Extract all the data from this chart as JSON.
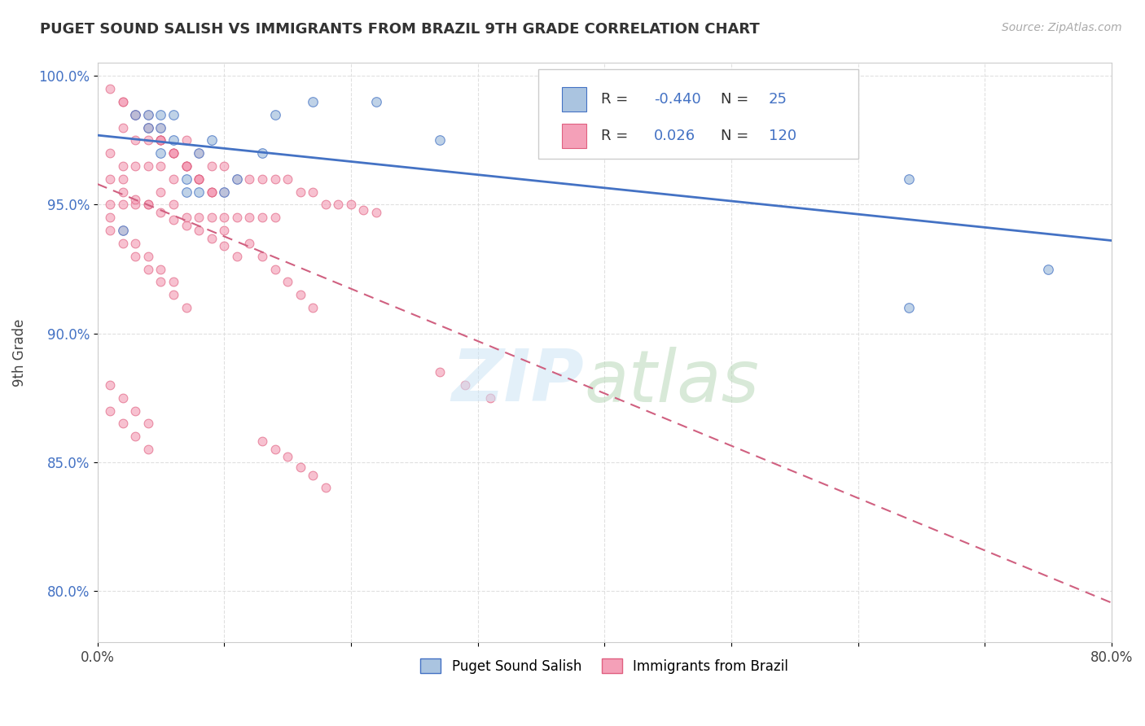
{
  "title": "PUGET SOUND SALISH VS IMMIGRANTS FROM BRAZIL 9TH GRADE CORRELATION CHART",
  "source": "Source: ZipAtlas.com",
  "ylabel": "9th Grade",
  "x_min": 0.0,
  "x_max": 0.8,
  "y_min": 0.78,
  "y_max": 1.005,
  "background_color": "#ffffff",
  "grid_color": "#dddddd",
  "blue_line_color": "#4472c4",
  "pink_line_color": "#d06080",
  "blue_dot_color": "#aac4e0",
  "pink_dot_color": "#f4a0b8",
  "blue_dot_edge": "#4472c4",
  "pink_dot_edge": "#e06080",
  "legend_blue_label": "Puget Sound Salish",
  "legend_pink_label": "Immigrants from Brazil",
  "R_blue": -0.44,
  "N_blue": 25,
  "R_pink": 0.026,
  "N_pink": 120,
  "blue_scatter_x": [
    0.02,
    0.03,
    0.04,
    0.04,
    0.05,
    0.05,
    0.05,
    0.06,
    0.06,
    0.07,
    0.07,
    0.08,
    0.08,
    0.09,
    0.1,
    0.11,
    0.13,
    0.14,
    0.17,
    0.22,
    0.27,
    0.52,
    0.64,
    0.64,
    0.75
  ],
  "blue_scatter_y": [
    0.94,
    0.985,
    0.985,
    0.98,
    0.985,
    0.98,
    0.97,
    0.985,
    0.975,
    0.955,
    0.96,
    0.97,
    0.955,
    0.975,
    0.955,
    0.96,
    0.97,
    0.985,
    0.99,
    0.99,
    0.975,
    0.975,
    0.96,
    0.91,
    0.925
  ],
  "pink_scatter_x": [
    0.01,
    0.01,
    0.01,
    0.02,
    0.02,
    0.02,
    0.02,
    0.03,
    0.03,
    0.03,
    0.03,
    0.04,
    0.04,
    0.04,
    0.04,
    0.05,
    0.05,
    0.05,
    0.05,
    0.06,
    0.06,
    0.06,
    0.07,
    0.07,
    0.07,
    0.08,
    0.08,
    0.08,
    0.09,
    0.09,
    0.09,
    0.1,
    0.1,
    0.1,
    0.11,
    0.11,
    0.12,
    0.12,
    0.13,
    0.13,
    0.14,
    0.14,
    0.15,
    0.16,
    0.17,
    0.18,
    0.19,
    0.2,
    0.21,
    0.22,
    0.02,
    0.03,
    0.04,
    0.05,
    0.06,
    0.07,
    0.08,
    0.09,
    0.1,
    0.11,
    0.02,
    0.03,
    0.04,
    0.05,
    0.06,
    0.07,
    0.08,
    0.09,
    0.03,
    0.04,
    0.05,
    0.06,
    0.07,
    0.08,
    0.01,
    0.02,
    0.03,
    0.04,
    0.05,
    0.06,
    0.07,
    0.08,
    0.09,
    0.01,
    0.02,
    0.03,
    0.04,
    0.05,
    0.06,
    0.07,
    0.01,
    0.02,
    0.03,
    0.04,
    0.05,
    0.06,
    0.01,
    0.02,
    0.03,
    0.04,
    0.01,
    0.02,
    0.03,
    0.04,
    0.27,
    0.29,
    0.31,
    0.1,
    0.12,
    0.13,
    0.14,
    0.15,
    0.16,
    0.17,
    0.13,
    0.14,
    0.15,
    0.16,
    0.17,
    0.18
  ],
  "pink_scatter_y": [
    0.96,
    0.95,
    0.97,
    0.98,
    0.965,
    0.96,
    0.95,
    0.985,
    0.975,
    0.965,
    0.95,
    0.985,
    0.975,
    0.965,
    0.95,
    0.98,
    0.975,
    0.965,
    0.955,
    0.97,
    0.96,
    0.95,
    0.975,
    0.965,
    0.945,
    0.97,
    0.96,
    0.945,
    0.965,
    0.955,
    0.945,
    0.965,
    0.955,
    0.945,
    0.96,
    0.945,
    0.96,
    0.945,
    0.96,
    0.945,
    0.96,
    0.945,
    0.96,
    0.955,
    0.955,
    0.95,
    0.95,
    0.95,
    0.948,
    0.947,
    0.955,
    0.952,
    0.95,
    0.947,
    0.944,
    0.942,
    0.94,
    0.937,
    0.934,
    0.93,
    0.99,
    0.985,
    0.98,
    0.975,
    0.97,
    0.965,
    0.96,
    0.955,
    0.985,
    0.98,
    0.975,
    0.97,
    0.965,
    0.96,
    0.995,
    0.99,
    0.985,
    0.98,
    0.975,
    0.97,
    0.965,
    0.96,
    0.955,
    0.94,
    0.935,
    0.93,
    0.925,
    0.92,
    0.915,
    0.91,
    0.945,
    0.94,
    0.935,
    0.93,
    0.925,
    0.92,
    0.87,
    0.865,
    0.86,
    0.855,
    0.88,
    0.875,
    0.87,
    0.865,
    0.885,
    0.88,
    0.875,
    0.94,
    0.935,
    0.93,
    0.925,
    0.92,
    0.915,
    0.91,
    0.858,
    0.855,
    0.852,
    0.848,
    0.845,
    0.84
  ]
}
